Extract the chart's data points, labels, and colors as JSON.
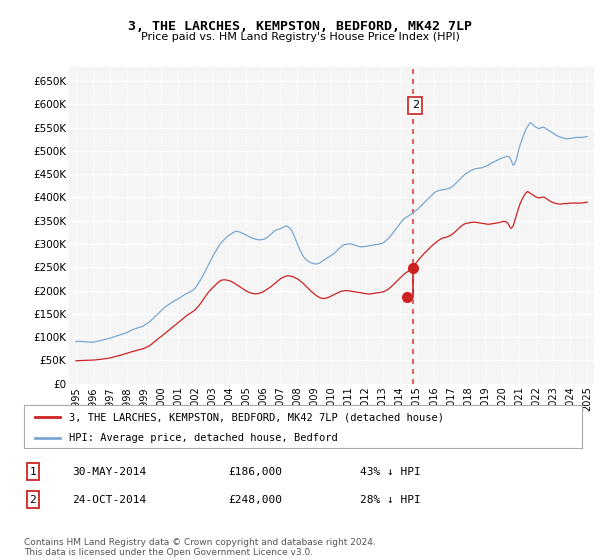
{
  "title": "3, THE LARCHES, KEMPSTON, BEDFORD, MK42 7LP",
  "subtitle": "Price paid vs. HM Land Registry's House Price Index (HPI)",
  "ylim": [
    0,
    680000
  ],
  "yticks": [
    0,
    50000,
    100000,
    150000,
    200000,
    250000,
    300000,
    350000,
    400000,
    450000,
    500000,
    550000,
    600000,
    650000
  ],
  "ytick_labels": [
    "£0",
    "£50K",
    "£100K",
    "£150K",
    "£200K",
    "£250K",
    "£300K",
    "£350K",
    "£400K",
    "£450K",
    "£500K",
    "£550K",
    "£600K",
    "£650K"
  ],
  "hpi_color": "#7aa8d2",
  "property_color": "#cc2222",
  "vline_color": "#dd4444",
  "transaction1": {
    "date_label": "30-MAY-2014",
    "price": 186000,
    "pct": "43% ↓ HPI",
    "num": "1",
    "year": 2014.41
  },
  "transaction2": {
    "date_label": "24-OCT-2014",
    "price": 248000,
    "pct": "28% ↓ HPI",
    "num": "2",
    "year": 2014.81
  },
  "legend_property": "3, THE LARCHES, KEMPSTON, BEDFORD, MK42 7LP (detached house)",
  "legend_hpi": "HPI: Average price, detached house, Bedford",
  "footer": "Contains HM Land Registry data © Crown copyright and database right 2024.\nThis data is licensed under the Open Government Licence v3.0.",
  "background_color": "#ffffff",
  "plot_bg_color": "#f5f5f5",
  "hpi_data_years": [
    1995.0,
    1995.083,
    1995.167,
    1995.25,
    1995.333,
    1995.417,
    1995.5,
    1995.583,
    1995.667,
    1995.75,
    1995.833,
    1995.917,
    1996.0,
    1996.083,
    1996.167,
    1996.25,
    1996.333,
    1996.417,
    1996.5,
    1996.583,
    1996.667,
    1996.75,
    1996.833,
    1996.917,
    1997.0,
    1997.083,
    1997.167,
    1997.25,
    1997.333,
    1997.417,
    1997.5,
    1997.583,
    1997.667,
    1997.75,
    1997.833,
    1997.917,
    1998.0,
    1998.083,
    1998.167,
    1998.25,
    1998.333,
    1998.417,
    1998.5,
    1998.583,
    1998.667,
    1998.75,
    1998.833,
    1998.917,
    1999.0,
    1999.083,
    1999.167,
    1999.25,
    1999.333,
    1999.417,
    1999.5,
    1999.583,
    1999.667,
    1999.75,
    1999.833,
    1999.917,
    2000.0,
    2000.083,
    2000.167,
    2000.25,
    2000.333,
    2000.417,
    2000.5,
    2000.583,
    2000.667,
    2000.75,
    2000.833,
    2000.917,
    2001.0,
    2001.083,
    2001.167,
    2001.25,
    2001.333,
    2001.417,
    2001.5,
    2001.583,
    2001.667,
    2001.75,
    2001.833,
    2001.917,
    2002.0,
    2002.083,
    2002.167,
    2002.25,
    2002.333,
    2002.417,
    2002.5,
    2002.583,
    2002.667,
    2002.75,
    2002.833,
    2002.917,
    2003.0,
    2003.083,
    2003.167,
    2003.25,
    2003.333,
    2003.417,
    2003.5,
    2003.583,
    2003.667,
    2003.75,
    2003.833,
    2003.917,
    2004.0,
    2004.083,
    2004.167,
    2004.25,
    2004.333,
    2004.417,
    2004.5,
    2004.583,
    2004.667,
    2004.75,
    2004.833,
    2004.917,
    2005.0,
    2005.083,
    2005.167,
    2005.25,
    2005.333,
    2005.417,
    2005.5,
    2005.583,
    2005.667,
    2005.75,
    2005.833,
    2005.917,
    2006.0,
    2006.083,
    2006.167,
    2006.25,
    2006.333,
    2006.417,
    2006.5,
    2006.583,
    2006.667,
    2006.75,
    2006.833,
    2006.917,
    2007.0,
    2007.083,
    2007.167,
    2007.25,
    2007.333,
    2007.417,
    2007.5,
    2007.583,
    2007.667,
    2007.75,
    2007.833,
    2007.917,
    2008.0,
    2008.083,
    2008.167,
    2008.25,
    2008.333,
    2008.417,
    2008.5,
    2008.583,
    2008.667,
    2008.75,
    2008.833,
    2008.917,
    2009.0,
    2009.083,
    2009.167,
    2009.25,
    2009.333,
    2009.417,
    2009.5,
    2009.583,
    2009.667,
    2009.75,
    2009.833,
    2009.917,
    2010.0,
    2010.083,
    2010.167,
    2010.25,
    2010.333,
    2010.417,
    2010.5,
    2010.583,
    2010.667,
    2010.75,
    2010.833,
    2010.917,
    2011.0,
    2011.083,
    2011.167,
    2011.25,
    2011.333,
    2011.417,
    2011.5,
    2011.583,
    2011.667,
    2011.75,
    2011.833,
    2011.917,
    2012.0,
    2012.083,
    2012.167,
    2012.25,
    2012.333,
    2012.417,
    2012.5,
    2012.583,
    2012.667,
    2012.75,
    2012.833,
    2012.917,
    2013.0,
    2013.083,
    2013.167,
    2013.25,
    2013.333,
    2013.417,
    2013.5,
    2013.583,
    2013.667,
    2013.75,
    2013.833,
    2013.917,
    2014.0,
    2014.083,
    2014.167,
    2014.25,
    2014.333,
    2014.417,
    2014.5,
    2014.583,
    2014.667,
    2014.75,
    2014.833,
    2014.917,
    2015.0,
    2015.083,
    2015.167,
    2015.25,
    2015.333,
    2015.417,
    2015.5,
    2015.583,
    2015.667,
    2015.75,
    2015.833,
    2015.917,
    2016.0,
    2016.083,
    2016.167,
    2016.25,
    2016.333,
    2016.417,
    2016.5,
    2016.583,
    2016.667,
    2016.75,
    2016.833,
    2016.917,
    2017.0,
    2017.083,
    2017.167,
    2017.25,
    2017.333,
    2017.417,
    2017.5,
    2017.583,
    2017.667,
    2017.75,
    2017.833,
    2017.917,
    2018.0,
    2018.083,
    2018.167,
    2018.25,
    2018.333,
    2018.417,
    2018.5,
    2018.583,
    2018.667,
    2018.75,
    2018.833,
    2018.917,
    2019.0,
    2019.083,
    2019.167,
    2019.25,
    2019.333,
    2019.417,
    2019.5,
    2019.583,
    2019.667,
    2019.75,
    2019.833,
    2019.917,
    2020.0,
    2020.083,
    2020.167,
    2020.25,
    2020.333,
    2020.417,
    2020.5,
    2020.583,
    2020.667,
    2020.75,
    2020.833,
    2020.917,
    2021.0,
    2021.083,
    2021.167,
    2021.25,
    2021.333,
    2021.417,
    2021.5,
    2021.583,
    2021.667,
    2021.75,
    2021.833,
    2021.917,
    2022.0,
    2022.083,
    2022.167,
    2022.25,
    2022.333,
    2022.417,
    2022.5,
    2022.583,
    2022.667,
    2022.75,
    2022.833,
    2022.917,
    2023.0,
    2023.083,
    2023.167,
    2023.25,
    2023.333,
    2023.417,
    2023.5,
    2023.583,
    2023.667,
    2023.75,
    2023.833,
    2023.917,
    2024.0,
    2024.083,
    2024.167,
    2024.25,
    2024.333,
    2024.417,
    2024.5,
    2024.583,
    2024.667,
    2024.75,
    2024.833,
    2024.917,
    2025.0
  ],
  "hpi_data_values": [
    90000,
    90500,
    91000,
    90800,
    90500,
    90200,
    90000,
    89800,
    89500,
    89200,
    89000,
    88800,
    89000,
    89500,
    90000,
    90800,
    91500,
    92200,
    93000,
    93800,
    94500,
    95200,
    96000,
    96800,
    97500,
    98500,
    99500,
    100500,
    101500,
    102500,
    103500,
    104500,
    105500,
    106500,
    107500,
    108500,
    110000,
    111500,
    113000,
    114500,
    116000,
    117000,
    118000,
    119000,
    120000,
    121000,
    122000,
    123000,
    125000,
    127000,
    129000,
    131000,
    133000,
    136000,
    139000,
    142000,
    145000,
    148000,
    151000,
    154000,
    157000,
    160000,
    162500,
    165000,
    167000,
    169000,
    171000,
    173000,
    175000,
    177000,
    179000,
    180500,
    182000,
    184000,
    186000,
    188000,
    190000,
    192000,
    193500,
    195000,
    196500,
    198000,
    200000,
    202000,
    205000,
    209000,
    214000,
    219000,
    224000,
    229000,
    235000,
    241000,
    247000,
    253000,
    259000,
    265000,
    271000,
    277000,
    282000,
    287000,
    292000,
    297000,
    302000,
    305000,
    308000,
    311000,
    314000,
    317000,
    319000,
    321000,
    323000,
    325000,
    326500,
    327500,
    327000,
    326000,
    325000,
    323500,
    322000,
    320500,
    319000,
    317500,
    316000,
    314500,
    313000,
    312000,
    311000,
    310000,
    309500,
    309000,
    309000,
    309500,
    310000,
    311000,
    313000,
    315000,
    317500,
    320000,
    322500,
    325500,
    328500,
    330000,
    331000,
    332000,
    333000,
    334500,
    336000,
    337500,
    339000,
    338000,
    336000,
    333000,
    329000,
    322000,
    315000,
    308000,
    300000,
    293000,
    286000,
    280000,
    274000,
    270000,
    267000,
    264000,
    262000,
    260500,
    259000,
    258000,
    257500,
    257000,
    257500,
    258500,
    260000,
    262000,
    264000,
    266000,
    268000,
    270000,
    272000,
    274000,
    276000,
    278000,
    280000,
    283000,
    286000,
    289000,
    292000,
    295000,
    297000,
    298500,
    299000,
    299500,
    300000,
    300500,
    300000,
    299000,
    298000,
    297000,
    296000,
    295000,
    294500,
    294000,
    294000,
    294500,
    295000,
    295500,
    296000,
    296500,
    297000,
    297500,
    298000,
    298500,
    299000,
    299500,
    300000,
    301000,
    302000,
    304000,
    306500,
    309000,
    312000,
    315500,
    319000,
    323000,
    327000,
    331000,
    335000,
    339000,
    343000,
    347000,
    351000,
    354000,
    356500,
    358000,
    360000,
    362000,
    364000,
    366000,
    368500,
    371000,
    373000,
    376000,
    379000,
    382000,
    385000,
    388000,
    391000,
    394000,
    397000,
    400000,
    403000,
    406000,
    409000,
    411500,
    413000,
    414500,
    415500,
    416000,
    416500,
    417000,
    417500,
    418000,
    419000,
    420000,
    421500,
    423500,
    426000,
    429000,
    432000,
    435000,
    438000,
    441000,
    444000,
    447000,
    450000,
    452000,
    454000,
    456000,
    457500,
    459000,
    460500,
    461500,
    462000,
    462500,
    463000,
    463500,
    464000,
    465000,
    466000,
    467500,
    469000,
    471000,
    473000,
    474500,
    476000,
    477500,
    479000,
    480500,
    482000,
    483500,
    485000,
    486000,
    487000,
    488000,
    488500,
    487000,
    483000,
    476000,
    469000,
    473000,
    480000,
    493000,
    505000,
    515000,
    524000,
    532000,
    540000,
    547000,
    552000,
    557000,
    561000,
    559000,
    556000,
    553000,
    551000,
    549500,
    548000,
    549000,
    550500,
    551000,
    550000,
    548000,
    546000,
    544000,
    542000,
    540500,
    538000,
    536000,
    534000,
    532500,
    531000,
    530000,
    529000,
    528000,
    527000,
    526500,
    526000,
    526500,
    527000,
    527500,
    528000,
    528500,
    529000,
    529000,
    529000,
    529000,
    529000,
    529500,
    530000,
    530500,
    531000
  ],
  "prop_data_years": [
    1995.0,
    1995.083,
    1995.167,
    1995.25,
    1995.333,
    1995.417,
    1995.5,
    1995.583,
    1995.667,
    1995.75,
    1995.833,
    1995.917,
    1996.0,
    1996.083,
    1996.167,
    1996.25,
    1996.333,
    1996.417,
    1996.5,
    1996.583,
    1996.667,
    1996.75,
    1996.833,
    1996.917,
    1997.0,
    1997.083,
    1997.167,
    1997.25,
    1997.333,
    1997.417,
    1997.5,
    1997.583,
    1997.667,
    1997.75,
    1997.833,
    1997.917,
    1998.0,
    1998.083,
    1998.167,
    1998.25,
    1998.333,
    1998.417,
    1998.5,
    1998.583,
    1998.667,
    1998.75,
    1998.833,
    1998.917,
    1999.0,
    1999.083,
    1999.167,
    1999.25,
    1999.333,
    1999.417,
    1999.5,
    1999.583,
    1999.667,
    1999.75,
    1999.833,
    1999.917,
    2000.0,
    2000.083,
    2000.167,
    2000.25,
    2000.333,
    2000.417,
    2000.5,
    2000.583,
    2000.667,
    2000.75,
    2000.833,
    2000.917,
    2001.0,
    2001.083,
    2001.167,
    2001.25,
    2001.333,
    2001.417,
    2001.5,
    2001.583,
    2001.667,
    2001.75,
    2001.833,
    2001.917,
    2002.0,
    2002.083,
    2002.167,
    2002.25,
    2002.333,
    2002.417,
    2002.5,
    2002.583,
    2002.667,
    2002.75,
    2002.833,
    2002.917,
    2003.0,
    2003.083,
    2003.167,
    2003.25,
    2003.333,
    2003.417,
    2003.5,
    2003.583,
    2003.667,
    2003.75,
    2003.833,
    2003.917,
    2004.0,
    2004.083,
    2004.167,
    2004.25,
    2004.333,
    2004.417,
    2004.5,
    2004.583,
    2004.667,
    2004.75,
    2004.833,
    2004.917,
    2005.0,
    2005.083,
    2005.167,
    2005.25,
    2005.333,
    2005.417,
    2005.5,
    2005.583,
    2005.667,
    2005.75,
    2005.833,
    2005.917,
    2006.0,
    2006.083,
    2006.167,
    2006.25,
    2006.333,
    2006.417,
    2006.5,
    2006.583,
    2006.667,
    2006.75,
    2006.833,
    2006.917,
    2007.0,
    2007.083,
    2007.167,
    2007.25,
    2007.333,
    2007.417,
    2007.5,
    2007.583,
    2007.667,
    2007.75,
    2007.833,
    2007.917,
    2008.0,
    2008.083,
    2008.167,
    2008.25,
    2008.333,
    2008.417,
    2008.5,
    2008.583,
    2008.667,
    2008.75,
    2008.833,
    2008.917,
    2009.0,
    2009.083,
    2009.167,
    2009.25,
    2009.333,
    2009.417,
    2009.5,
    2009.583,
    2009.667,
    2009.75,
    2009.833,
    2009.917,
    2010.0,
    2010.083,
    2010.167,
    2010.25,
    2010.333,
    2010.417,
    2010.5,
    2010.583,
    2010.667,
    2010.75,
    2010.833,
    2010.917,
    2011.0,
    2011.083,
    2011.167,
    2011.25,
    2011.333,
    2011.417,
    2011.5,
    2011.583,
    2011.667,
    2011.75,
    2011.833,
    2011.917,
    2012.0,
    2012.083,
    2012.167,
    2012.25,
    2012.333,
    2012.417,
    2012.5,
    2012.583,
    2012.667,
    2012.75,
    2012.833,
    2012.917,
    2013.0,
    2013.083,
    2013.167,
    2013.25,
    2013.333,
    2013.417,
    2013.5,
    2013.583,
    2013.667,
    2013.75,
    2013.833,
    2013.917,
    2014.0,
    2014.083,
    2014.167,
    2014.25,
    2014.333,
    2014.417,
    2014.5,
    2014.583,
    2014.667,
    2014.75,
    2014.833,
    2014.917,
    2015.0,
    2015.083,
    2015.167,
    2015.25,
    2015.333,
    2015.417,
    2015.5,
    2015.583,
    2015.667,
    2015.75,
    2015.833,
    2015.917,
    2016.0,
    2016.083,
    2016.167,
    2016.25,
    2016.333,
    2016.417,
    2016.5,
    2016.583,
    2016.667,
    2016.75,
    2016.833,
    2016.917,
    2017.0,
    2017.083,
    2017.167,
    2017.25,
    2017.333,
    2017.417,
    2017.5,
    2017.583,
    2017.667,
    2017.75,
    2017.833,
    2017.917,
    2018.0,
    2018.083,
    2018.167,
    2018.25,
    2018.333,
    2018.417,
    2018.5,
    2018.583,
    2018.667,
    2018.75,
    2018.833,
    2018.917,
    2019.0,
    2019.083,
    2019.167,
    2019.25,
    2019.333,
    2019.417,
    2019.5,
    2019.583,
    2019.667,
    2019.75,
    2019.833,
    2019.917,
    2020.0,
    2020.083,
    2020.167,
    2020.25,
    2020.333,
    2020.417,
    2020.5,
    2020.583,
    2020.667,
    2020.75,
    2020.833,
    2020.917,
    2021.0,
    2021.083,
    2021.167,
    2021.25,
    2021.333,
    2021.417,
    2021.5,
    2021.583,
    2021.667,
    2021.75,
    2021.833,
    2021.917,
    2022.0,
    2022.083,
    2022.167,
    2022.25,
    2022.333,
    2022.417,
    2022.5,
    2022.583,
    2022.667,
    2022.75,
    2022.833,
    2022.917,
    2023.0,
    2023.083,
    2023.167,
    2023.25,
    2023.333,
    2023.417,
    2023.5,
    2023.583,
    2023.667,
    2023.75,
    2023.833,
    2023.917,
    2024.0,
    2024.083,
    2024.167,
    2024.25,
    2024.333,
    2024.417,
    2024.5,
    2024.583,
    2024.667,
    2024.75,
    2024.833,
    2024.917,
    2025.0
  ],
  "prop_data_values": [
    49000,
    49200,
    49400,
    49500,
    49600,
    49700,
    49800,
    49900,
    50000,
    50100,
    50200,
    50300,
    50500,
    50700,
    51000,
    51300,
    51600,
    52000,
    52400,
    52800,
    53200,
    53600,
    54000,
    54400,
    55000,
    55800,
    56600,
    57400,
    58200,
    59000,
    59800,
    60600,
    61500,
    62400,
    63300,
    64200,
    65200,
    66200,
    67200,
    68200,
    69000,
    69800,
    70500,
    71200,
    72000,
    72800,
    73600,
    74400,
    75500,
    77000,
    78500,
    80000,
    82000,
    84000,
    86500,
    89000,
    91500,
    94000,
    96500,
    99000,
    101000,
    103500,
    106000,
    108500,
    111000,
    113500,
    116000,
    118500,
    121000,
    123500,
    126000,
    128500,
    131000,
    133500,
    136000,
    138500,
    141000,
    143500,
    146000,
    148000,
    150000,
    152000,
    154000,
    156000,
    158500,
    162000,
    165500,
    169000,
    173000,
    177500,
    182000,
    186500,
    191000,
    195000,
    198500,
    202000,
    205000,
    208000,
    211000,
    214000,
    217000,
    219500,
    221500,
    222500,
    223000,
    223000,
    222500,
    222000,
    221000,
    220000,
    218500,
    217000,
    215000,
    213000,
    211000,
    209000,
    207000,
    205000,
    203000,
    201000,
    199000,
    197500,
    196000,
    195000,
    194000,
    193500,
    193000,
    193000,
    193500,
    194000,
    195000,
    196000,
    197500,
    199500,
    201500,
    203500,
    205500,
    207500,
    210000,
    212500,
    215000,
    217500,
    220000,
    222500,
    225000,
    227000,
    228500,
    230000,
    231000,
    231500,
    231500,
    231000,
    230500,
    229500,
    228000,
    226500,
    225000,
    223000,
    220500,
    218000,
    215500,
    212500,
    209500,
    206500,
    203500,
    200500,
    197500,
    195000,
    192500,
    190000,
    188000,
    186000,
    184500,
    183500,
    183000,
    183000,
    183500,
    184500,
    185500,
    187000,
    188500,
    190000,
    191500,
    193000,
    194500,
    196000,
    197500,
    198500,
    199000,
    199500,
    200000,
    200000,
    199500,
    199000,
    198500,
    198000,
    197500,
    197000,
    196500,
    196000,
    195500,
    195000,
    194500,
    194000,
    193500,
    193000,
    192500,
    192500,
    193000,
    193500,
    194000,
    194500,
    195000,
    195500,
    196000,
    196500,
    197000,
    198000,
    199500,
    201000,
    203000,
    205500,
    208000,
    211000,
    214000,
    217000,
    220000,
    223000,
    226000,
    229000,
    232000,
    235000,
    237500,
    239500,
    241000,
    243000,
    246000,
    249500,
    253000,
    257000,
    261000,
    265000,
    268500,
    272000,
    275500,
    279000,
    282000,
    285000,
    288000,
    291000,
    294000,
    297000,
    299500,
    302000,
    304500,
    307000,
    309000,
    311000,
    312500,
    313500,
    314000,
    315000,
    316000,
    317500,
    319000,
    321000,
    323500,
    326000,
    329000,
    332000,
    335000,
    337500,
    340000,
    342000,
    343500,
    344500,
    345000,
    345500,
    346000,
    346500,
    347000,
    347000,
    346500,
    346000,
    345500,
    345000,
    344500,
    344000,
    343500,
    343000,
    342500,
    342500,
    343000,
    343500,
    344000,
    344500,
    345000,
    345500,
    346000,
    347000,
    348000,
    348500,
    348500,
    347500,
    345000,
    340000,
    334000,
    335000,
    340000,
    350000,
    360000,
    370000,
    380000,
    388000,
    395000,
    401000,
    406000,
    410000,
    413000,
    411000,
    409000,
    407000,
    405000,
    403000,
    401000,
    400000,
    399000,
    399500,
    400500,
    401000,
    400000,
    398000,
    396000,
    394000,
    392000,
    390500,
    389000,
    388000,
    387000,
    386500,
    386000,
    386000,
    386000,
    386500,
    387000,
    387000,
    387000,
    387500,
    388000,
    388000,
    388000,
    388000,
    388000,
    388000,
    388000,
    388000,
    388000,
    388500,
    389000,
    389500,
    390000
  ]
}
